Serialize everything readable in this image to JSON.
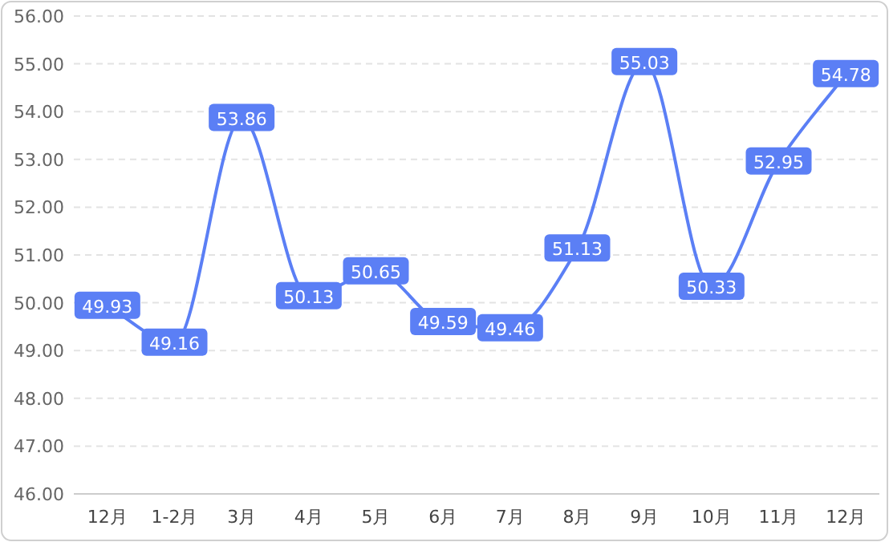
{
  "chart_data": {
    "type": "line",
    "categories": [
      "12月",
      "1-2月",
      "3月",
      "4月",
      "5月",
      "6月",
      "7月",
      "8月",
      "9月",
      "10月",
      "11月",
      "12月"
    ],
    "series": [
      {
        "color": "#5b7ff5",
        "values": [
          49.93,
          49.16,
          53.86,
          50.13,
          50.65,
          49.59,
          49.46,
          51.13,
          55.03,
          50.33,
          52.95,
          54.78
        ]
      }
    ],
    "ylim": [
      46,
      56
    ],
    "yticks": [
      {
        "value": 46,
        "label": "46.00"
      },
      {
        "value": 47,
        "label": "47.00"
      },
      {
        "value": 48,
        "label": "48.00"
      },
      {
        "value": 49,
        "label": "49.00"
      },
      {
        "value": 50,
        "label": "50.00"
      },
      {
        "value": 51,
        "label": "51.00"
      },
      {
        "value": 52,
        "label": "52.00"
      },
      {
        "value": 53,
        "label": "53.00"
      },
      {
        "value": 54,
        "label": "54.00"
      },
      {
        "value": 55,
        "label": "55.00"
      },
      {
        "value": 56,
        "label": "56.00"
      }
    ],
    "grid": "y",
    "data_labels": true,
    "line_style": "solid",
    "marker": "square"
  }
}
